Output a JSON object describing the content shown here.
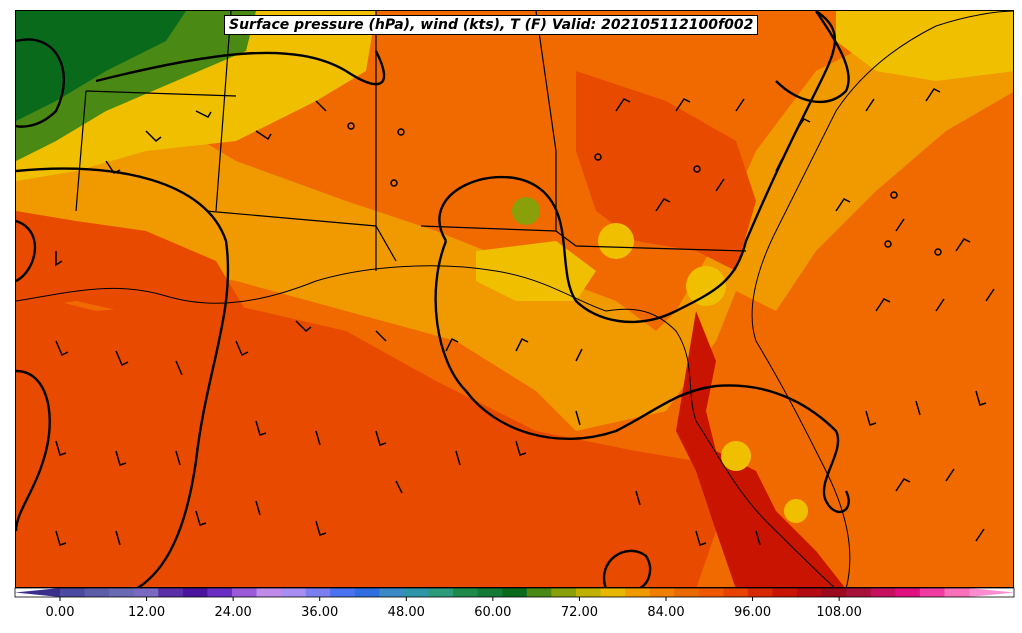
{
  "title": "Surface pressure (hPa), wind (kts), T (F) Valid: 202105112100f002",
  "colorbar": {
    "tick_labels": [
      "0.00",
      "12.00",
      "24.00",
      "36.00",
      "48.00",
      "60.00",
      "72.00",
      "84.00",
      "96.00",
      "108.00"
    ],
    "min": -6,
    "max": 123,
    "step": 3,
    "extend": "both",
    "colors": [
      "#3b2f8c",
      "#4b4aa0",
      "#5c5ca8",
      "#6a6ab4",
      "#7a6ac2",
      "#5a2fa8",
      "#4b13a0",
      "#6a2dc4",
      "#9a5ad8",
      "#c08ae8",
      "#a88ef0",
      "#7a7ef0",
      "#4a72f0",
      "#2f6ee0",
      "#3a8ac8",
      "#2e96a8",
      "#2a9a7a",
      "#1e8a4a",
      "#127a34",
      "#0a6a1c",
      "#4a8a14",
      "#8aa00a",
      "#c0b000",
      "#e8b800",
      "#f09a00",
      "#f07e00",
      "#e86a00",
      "#f05800",
      "#e84400",
      "#d82800",
      "#c81400",
      "#b40a14",
      "#9c0a20",
      "#a8103c",
      "#c81060",
      "#e01080",
      "#f03ca0",
      "#f870b8",
      "#ff8cd0"
    ]
  },
  "map": {
    "fill_color": "#f06a00",
    "warm_color": "#e84a00",
    "hot_color": "#c81400",
    "cool_color": "#f09a00",
    "yellow_color": "#f0c000",
    "green_color": "#4a8a14",
    "dark_green_color": "#0a6a1c"
  }
}
